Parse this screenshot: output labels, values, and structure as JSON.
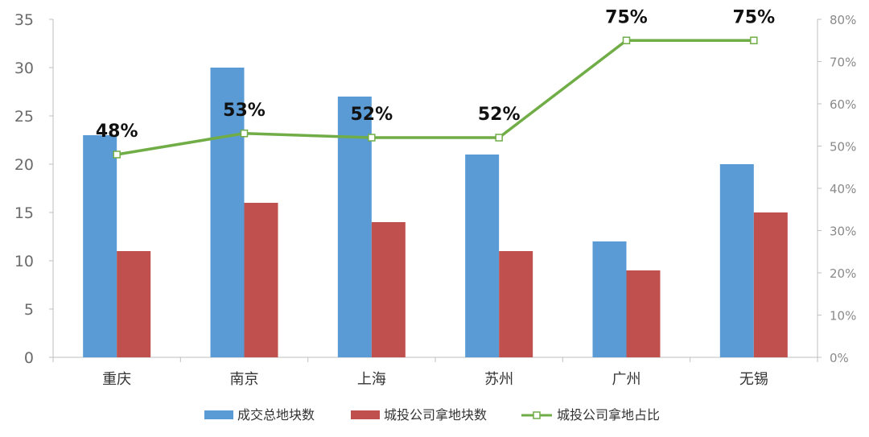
{
  "chart_data": {
    "type": "bar",
    "categories": [
      "重庆",
      "南京",
      "上海",
      "苏州",
      "广州",
      "无锡"
    ],
    "series": [
      {
        "name": "成交总地块数",
        "type": "bar",
        "axis": "left",
        "color": "#5b9bd5",
        "values": [
          23,
          30,
          27,
          21,
          12,
          20
        ]
      },
      {
        "name": "城投公司拿地块数",
        "type": "bar",
        "axis": "left",
        "color": "#c0504d",
        "values": [
          11,
          16,
          14,
          11,
          9,
          15
        ]
      },
      {
        "name": "城投公司拿地占比",
        "type": "line",
        "axis": "right",
        "color": "#70ad47",
        "values": [
          0.48,
          0.53,
          0.52,
          0.52,
          0.75,
          0.75
        ]
      }
    ],
    "data_labels": [
      "48%",
      "53%",
      "52%",
      "52%",
      "75%",
      "75%"
    ],
    "y_left": {
      "ylim": [
        0,
        35
      ],
      "ticks": [
        "0",
        "5",
        "10",
        "15",
        "20",
        "25",
        "30",
        "35"
      ]
    },
    "y_right": {
      "ylim": [
        0,
        0.8
      ],
      "ticks": [
        "0%",
        "10%",
        "20%",
        "30%",
        "40%",
        "50%",
        "60%",
        "70%",
        "80%"
      ]
    },
    "legend_position": "bottom",
    "grid": false
  }
}
